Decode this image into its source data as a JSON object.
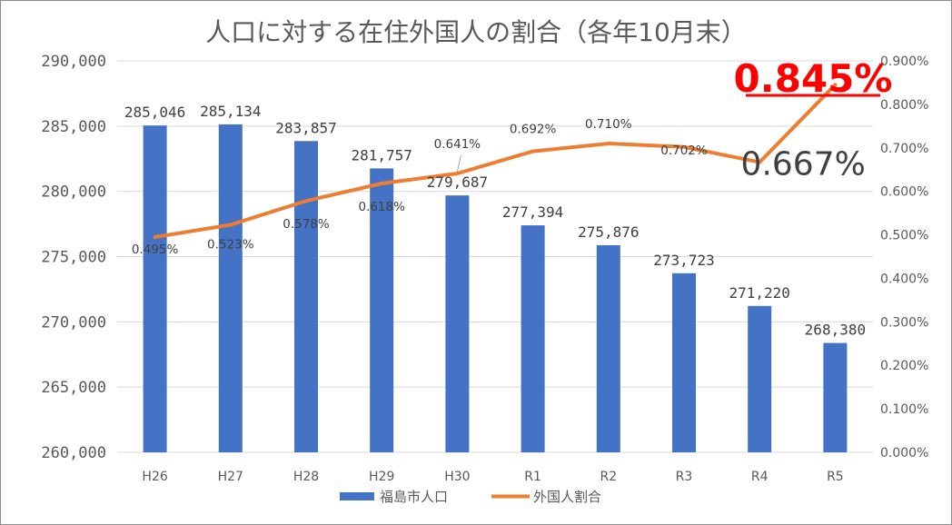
{
  "chart_data": {
    "type": "bar+line",
    "title": "人口に対する在住外国人の割合（各年10月末）",
    "categories": [
      "H26",
      "H27",
      "H28",
      "H29",
      "H30",
      "R1",
      "R2",
      "R3",
      "R4",
      "R5"
    ],
    "series": [
      {
        "name": "福島市人口",
        "type": "bar",
        "axis": "left",
        "color": "#4472C4",
        "values": [
          285046,
          285134,
          283857,
          281757,
          279687,
          277394,
          275876,
          273723,
          271220,
          268380
        ],
        "labels": [
          "285,046",
          "285,134",
          "283,857",
          "281,757",
          "279,687",
          "277,394",
          "275,876",
          "273,723",
          "271,220",
          "268,380"
        ]
      },
      {
        "name": "外国人割合",
        "type": "line",
        "axis": "right",
        "color": "#ED7D31",
        "values": [
          0.495,
          0.523,
          0.578,
          0.618,
          0.641,
          0.692,
          0.71,
          0.702,
          0.667,
          0.845
        ],
        "labels": [
          "0.495%",
          "0.523%",
          "0.578%",
          "0.618%",
          "0.641%",
          "0.692%",
          "0.710%",
          "0.702%",
          "0.667%",
          "0.845%"
        ]
      }
    ],
    "y_left": {
      "min": 260000,
      "max": 290000,
      "ticks": [
        "260,000",
        "265,000",
        "270,000",
        "275,000",
        "280,000",
        "285,000",
        "290,000"
      ]
    },
    "y_right": {
      "min": 0,
      "max": 0.9,
      "ticks": [
        "0.000%",
        "0.100%",
        "0.200%",
        "0.300%",
        "0.400%",
        "0.500%",
        "0.600%",
        "0.700%",
        "0.800%",
        "0.900%"
      ]
    },
    "highlight_colors": {
      "r4": "#404040",
      "r5": "#FF0000"
    },
    "gridlines": true,
    "legend": "bottom"
  }
}
